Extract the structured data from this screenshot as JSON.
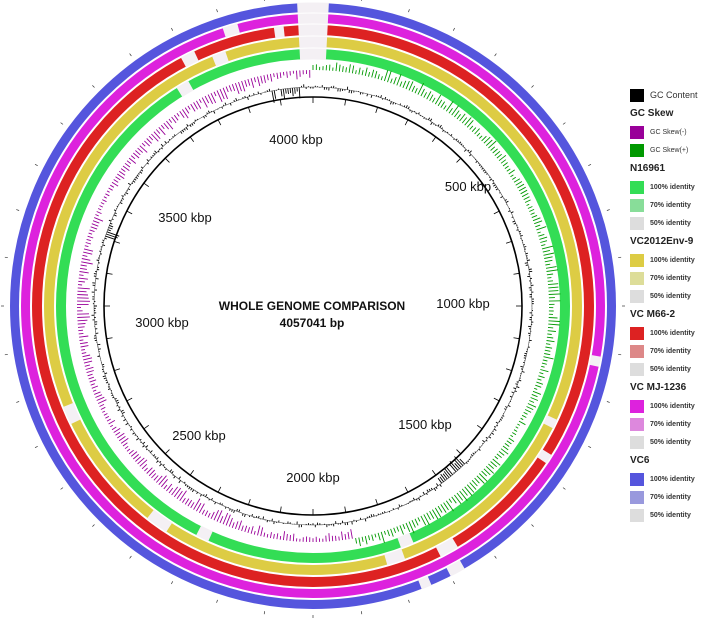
{
  "title": "WHOLE GENOME COMPARISON",
  "genome_size": "4057041 bp",
  "tick_labels": [
    "4000 kbp",
    "500 kbp",
    "1000 kbp",
    "1500 kbp",
    "2000 kbp",
    "2500 kbp",
    "3000 kbp",
    "3500 kbp"
  ],
  "legend": {
    "gc_content": {
      "label": "GC Content",
      "color": "#000000"
    },
    "gc_skew": {
      "title": "GC Skew",
      "minus": {
        "label": "GC Skew(-)",
        "color": "#990099"
      },
      "plus": {
        "label": "GC Skew(+)",
        "color": "#009900"
      }
    },
    "rings": [
      {
        "name": "N16961",
        "colors": [
          "#33dd55",
          "#88dd99",
          "#dddddd"
        ],
        "labels": [
          "100% identity",
          "70% identity",
          "50% identity"
        ]
      },
      {
        "name": "VC2012Env-9",
        "colors": [
          "#ddcc44",
          "#dddd99",
          "#dddddd"
        ],
        "labels": [
          "100% identity",
          "70% identity",
          "50% identity"
        ]
      },
      {
        "name": "VC M66-2",
        "colors": [
          "#dd2222",
          "#dd8888",
          "#dddddd"
        ],
        "labels": [
          "100% identity",
          "70% identity",
          "50% identity"
        ]
      },
      {
        "name": "VC MJ-1236",
        "colors": [
          "#dd22dd",
          "#dd88dd",
          "#dddddd"
        ],
        "labels": [
          "100% identity",
          "70% identity",
          "50% identity"
        ]
      },
      {
        "name": "VC6",
        "colors": [
          "#5555dd",
          "#9999dd",
          "#dddddd"
        ],
        "labels": [
          "100% identity",
          "70% identity",
          "50% identity"
        ]
      }
    ]
  }
}
